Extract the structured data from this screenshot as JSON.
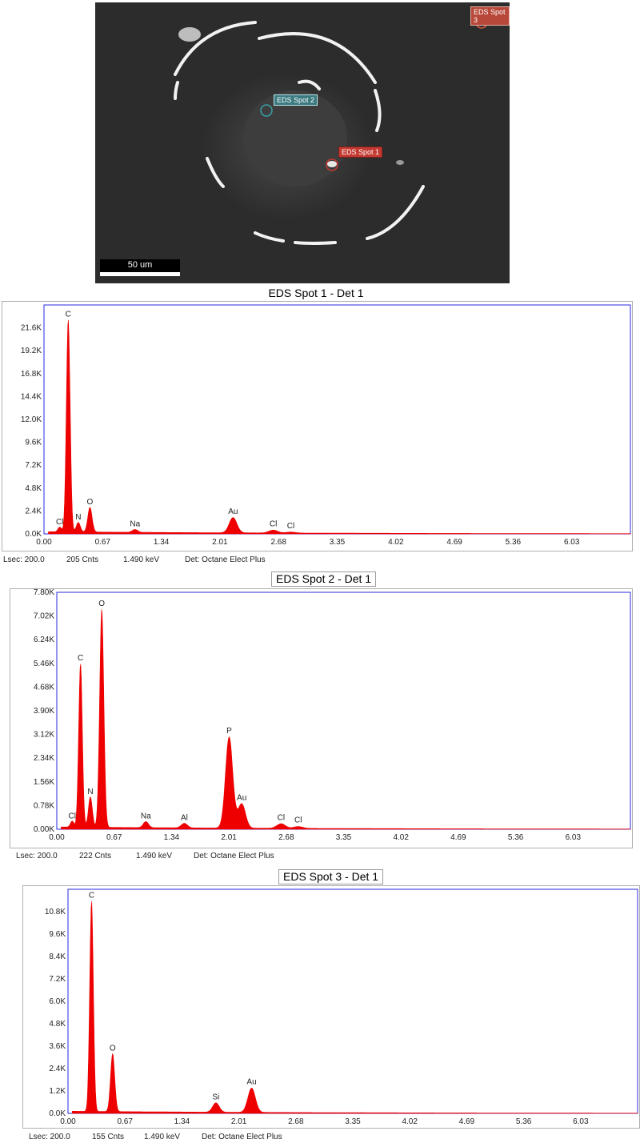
{
  "micrograph": {
    "scale_bar_label": "50 um",
    "spots": [
      {
        "label": "EDS Spot 1",
        "color": "#c43a32"
      },
      {
        "label": "EDS Spot 2",
        "color": "#3a9fa8"
      },
      {
        "label": "EDS Spot 3",
        "color": "#d0553a"
      }
    ]
  },
  "chart_data": [
    {
      "type": "area",
      "title": "EDS Spot 1 - Det 1",
      "x_ticks": [
        "0.00",
        "0.67",
        "1.34",
        "2.01",
        "2.68",
        "3.35",
        "4.02",
        "4.69",
        "5.36",
        "6.03"
      ],
      "y_ticks": [
        "0.0K",
        "2.4K",
        "4.8K",
        "7.2K",
        "9.6K",
        "12.0K",
        "14.4K",
        "16.8K",
        "19.2K",
        "21.6K"
      ],
      "xlim": [
        0,
        6.7
      ],
      "ylim": [
        0,
        24000
      ],
      "series": [
        {
          "color": "#ee0000",
          "peaks": [
            {
              "element": "Cl",
              "energy": 0.18,
              "counts": 500
            },
            {
              "element": "C",
              "energy": 0.277,
              "counts": 22300
            },
            {
              "element": "N",
              "energy": 0.392,
              "counts": 1000
            },
            {
              "element": "O",
              "energy": 0.525,
              "counts": 2600
            },
            {
              "element": "Na",
              "energy": 1.04,
              "counts": 300
            },
            {
              "element": "Au",
              "energy": 2.16,
              "counts": 1600
            },
            {
              "element": "Cl",
              "energy": 2.62,
              "counts": 300
            },
            {
              "element": "Cl",
              "energy": 2.82,
              "counts": 100
            }
          ]
        }
      ],
      "footer": {
        "lsec": "Lsec: 200.0",
        "cnts": "205 Cnts",
        "kev": "1.490 keV",
        "det": "Det: Octane Elect Plus"
      }
    },
    {
      "type": "area",
      "title": "EDS Spot 2 - Det 1",
      "x_ticks": [
        "0.00",
        "0.67",
        "1.34",
        "2.01",
        "2.68",
        "3.35",
        "4.02",
        "4.69",
        "5.36",
        "6.03"
      ],
      "y_ticks": [
        "0.00K",
        "0.78K",
        "1.56K",
        "2.34K",
        "3.12K",
        "3.90K",
        "4.68K",
        "5.46K",
        "6.24K",
        "7.02K",
        "7.80K"
      ],
      "xlim": [
        0,
        6.7
      ],
      "ylim": [
        0,
        7800
      ],
      "series": [
        {
          "color": "#ee0000",
          "peaks": [
            {
              "element": "Cl",
              "energy": 0.18,
              "counts": 200
            },
            {
              "element": "C",
              "energy": 0.277,
              "counts": 5400
            },
            {
              "element": "N",
              "energy": 0.392,
              "counts": 1000
            },
            {
              "element": "O",
              "energy": 0.525,
              "counts": 7200
            },
            {
              "element": "Na",
              "energy": 1.04,
              "counts": 200
            },
            {
              "element": "Al",
              "energy": 1.49,
              "counts": 150
            },
            {
              "element": "P",
              "energy": 2.013,
              "counts": 3000
            },
            {
              "element": "Au",
              "energy": 2.16,
              "counts": 800
            },
            {
              "element": "Cl",
              "energy": 2.62,
              "counts": 150
            },
            {
              "element": "Cl",
              "energy": 2.82,
              "counts": 60
            }
          ]
        }
      ],
      "footer": {
        "lsec": "Lsec: 200.0",
        "cnts": "222 Cnts",
        "kev": "1.490 keV",
        "det": "Det: Octane Elect Plus"
      }
    },
    {
      "type": "area",
      "title": "EDS Spot 3 - Det 1",
      "x_ticks": [
        "0.00",
        "0.67",
        "1.34",
        "2.01",
        "2.68",
        "3.35",
        "4.02",
        "4.69",
        "5.36",
        "6.03"
      ],
      "y_ticks": [
        "0.0K",
        "1.2K",
        "2.4K",
        "3.6K",
        "4.8K",
        "6.0K",
        "7.2K",
        "8.4K",
        "9.6K",
        "10.8K"
      ],
      "xlim": [
        0,
        6.7
      ],
      "ylim": [
        0,
        12000
      ],
      "series": [
        {
          "color": "#ee0000",
          "peaks": [
            {
              "element": "C",
              "energy": 0.277,
              "counts": 11300
            },
            {
              "element": "O",
              "energy": 0.525,
              "counts": 3100
            },
            {
              "element": "Si",
              "energy": 1.74,
              "counts": 500
            },
            {
              "element": "Au",
              "energy": 2.16,
              "counts": 1300
            }
          ]
        }
      ],
      "footer": {
        "lsec": "Lsec: 200.0",
        "cnts": "155 Cnts",
        "kev": "1.490 keV",
        "det": "Det: Octane Elect Plus"
      }
    }
  ]
}
